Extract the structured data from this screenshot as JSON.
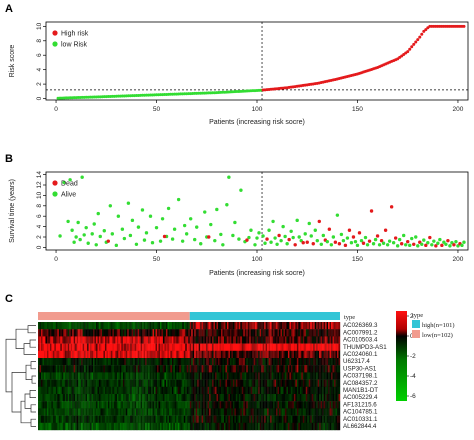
{
  "panels": {
    "a": "A",
    "b": "B",
    "c": "C"
  },
  "chart_data": [
    {
      "type": "scatter",
      "xlabel": "Patients (increasing risk socre)",
      "ylabel": "Risk score",
      "xlim": [
        -5,
        205
      ],
      "ylim": [
        -0.2,
        10.6
      ],
      "xticks": [
        0,
        50,
        100,
        150,
        200
      ],
      "yticks": [
        0,
        2,
        4,
        6,
        8,
        10
      ],
      "cutoff_index": 102,
      "cutoff_score": 1.2,
      "legend_position": "top-left",
      "series": [
        {
          "name": "High risk",
          "color": "#e41a1c",
          "index_range": [
            103,
            203
          ]
        },
        {
          "name": "low Risk",
          "color": "#33dd33",
          "index_range": [
            1,
            102
          ]
        }
      ],
      "curve_anchors": [
        [
          1,
          0.05
        ],
        [
          20,
          0.22
        ],
        [
          40,
          0.42
        ],
        [
          60,
          0.62
        ],
        [
          80,
          0.82
        ],
        [
          102,
          1.15
        ],
        [
          115,
          1.5
        ],
        [
          130,
          2.1
        ],
        [
          140,
          2.7
        ],
        [
          150,
          3.4
        ],
        [
          160,
          4.3
        ],
        [
          165,
          4.9
        ],
        [
          170,
          5.5
        ],
        [
          175,
          6.5
        ],
        [
          178,
          7.5
        ],
        [
          181,
          8.5
        ],
        [
          183,
          9.3
        ],
        [
          185,
          9.8
        ],
        [
          186,
          10.0
        ],
        [
          203,
          10.0
        ]
      ]
    },
    {
      "type": "scatter",
      "xlabel": "Patients (increasing risk socre)",
      "ylabel": "Survival time (years)",
      "xlim": [
        -5,
        205
      ],
      "ylim": [
        -0.5,
        14.5
      ],
      "xticks": [
        0,
        50,
        100,
        150,
        200
      ],
      "yticks": [
        0,
        2,
        4,
        6,
        8,
        10,
        12,
        14
      ],
      "cutoff_index": 102,
      "legend_position": "top-left",
      "series": [
        {
          "name": "Dead",
          "color": "#e41a1c"
        },
        {
          "name": "Alive",
          "color": "#33dd33"
        }
      ],
      "points": [
        [
          2,
          2.2,
          1
        ],
        [
          4,
          12.5,
          1
        ],
        [
          6,
          5.0,
          1
        ],
        [
          7,
          13.0,
          1
        ],
        [
          8,
          3.3,
          1
        ],
        [
          9,
          1.0,
          1
        ],
        [
          10,
          2.0,
          1
        ],
        [
          11,
          4.8,
          1
        ],
        [
          12,
          1.5,
          1
        ],
        [
          13,
          13.5,
          1
        ],
        [
          14,
          2.4,
          1
        ],
        [
          15,
          3.8,
          1
        ],
        [
          16,
          0.8,
          1
        ],
        [
          18,
          2.6,
          1
        ],
        [
          19,
          4.5,
          1
        ],
        [
          20,
          0.5,
          1
        ],
        [
          21,
          6.5,
          1
        ],
        [
          22,
          2.1,
          1
        ],
        [
          24,
          3.2,
          1
        ],
        [
          25,
          1.0,
          1
        ],
        [
          27,
          8.0,
          1
        ],
        [
          28,
          2.6,
          1
        ],
        [
          30,
          0.4,
          1
        ],
        [
          31,
          6.0,
          1
        ],
        [
          33,
          3.5,
          1
        ],
        [
          34,
          1.7,
          1
        ],
        [
          36,
          8.5,
          1
        ],
        [
          37,
          2.3,
          1
        ],
        [
          38,
          5.2,
          1
        ],
        [
          40,
          0.6,
          1
        ],
        [
          41,
          3.9,
          1
        ],
        [
          43,
          7.2,
          1
        ],
        [
          44,
          1.4,
          1
        ],
        [
          45,
          2.8,
          1
        ],
        [
          47,
          6.0,
          1
        ],
        [
          48,
          0.9,
          1
        ],
        [
          50,
          3.8,
          1
        ],
        [
          52,
          1.2,
          1
        ],
        [
          53,
          5.5,
          1
        ],
        [
          55,
          2.1,
          1
        ],
        [
          56,
          7.5,
          1
        ],
        [
          58,
          1.6,
          1
        ],
        [
          59,
          3.5,
          1
        ],
        [
          61,
          9.2,
          1
        ],
        [
          63,
          1.2,
          1
        ],
        [
          64,
          4.2,
          1
        ],
        [
          65,
          2.6,
          1
        ],
        [
          67,
          5.5,
          1
        ],
        [
          69,
          1.5,
          1
        ],
        [
          70,
          3.9,
          1
        ],
        [
          72,
          0.7,
          1
        ],
        [
          74,
          6.8,
          1
        ],
        [
          75,
          2.0,
          1
        ],
        [
          77,
          4.4,
          1
        ],
        [
          79,
          1.3,
          1
        ],
        [
          80,
          7.3,
          1
        ],
        [
          82,
          2.5,
          1
        ],
        [
          83,
          0.5,
          1
        ],
        [
          85,
          8.2,
          1
        ],
        [
          86,
          13.5,
          1
        ],
        [
          88,
          2.3,
          1
        ],
        [
          89,
          4.8,
          1
        ],
        [
          91,
          1.6,
          1
        ],
        [
          92,
          11.0,
          1
        ],
        [
          94,
          1.1,
          1
        ],
        [
          96,
          1.9,
          1
        ],
        [
          97,
          3.3,
          1
        ],
        [
          99,
          0.5,
          1
        ],
        [
          100,
          1.8,
          1
        ],
        [
          101,
          2.8,
          1
        ],
        [
          26,
          1.2,
          0
        ],
        [
          54,
          2.1,
          0
        ],
        [
          76,
          2.0,
          0
        ],
        [
          95,
          1.4,
          0
        ],
        [
          103,
          2.2,
          1
        ],
        [
          104,
          0.8,
          1
        ],
        [
          105,
          1.6,
          0
        ],
        [
          106,
          3.3,
          1
        ],
        [
          107,
          1.0,
          1
        ],
        [
          108,
          5.0,
          1
        ],
        [
          109,
          1.8,
          1
        ],
        [
          110,
          0.6,
          1
        ],
        [
          111,
          2.3,
          0
        ],
        [
          112,
          1.3,
          1
        ],
        [
          113,
          4.0,
          1
        ],
        [
          114,
          2.1,
          1
        ],
        [
          115,
          0.7,
          1
        ],
        [
          116,
          1.5,
          0
        ],
        [
          117,
          3.1,
          1
        ],
        [
          118,
          1.9,
          1
        ],
        [
          119,
          0.5,
          0
        ],
        [
          120,
          5.2,
          1
        ],
        [
          121,
          2.0,
          1
        ],
        [
          122,
          1.3,
          1
        ],
        [
          123,
          0.9,
          0
        ],
        [
          124,
          2.6,
          1
        ],
        [
          125,
          1.0,
          0
        ],
        [
          126,
          4.6,
          1
        ],
        [
          127,
          2.2,
          1
        ],
        [
          128,
          0.7,
          0
        ],
        [
          129,
          3.3,
          1
        ],
        [
          130,
          1.3,
          1
        ],
        [
          131,
          5.0,
          0
        ],
        [
          132,
          0.6,
          1
        ],
        [
          133,
          2.3,
          1
        ],
        [
          134,
          1.4,
          0
        ],
        [
          135,
          1.1,
          1
        ],
        [
          136,
          3.5,
          0
        ],
        [
          137,
          0.5,
          1
        ],
        [
          138,
          2.0,
          1
        ],
        [
          139,
          1.0,
          0
        ],
        [
          140,
          6.2,
          1
        ],
        [
          141,
          0.7,
          0
        ],
        [
          142,
          2.5,
          1
        ],
        [
          143,
          1.3,
          1
        ],
        [
          144,
          0.4,
          0
        ],
        [
          145,
          1.8,
          1
        ],
        [
          146,
          3.3,
          0
        ],
        [
          147,
          0.9,
          1
        ],
        [
          148,
          2.0,
          0
        ],
        [
          149,
          1.1,
          1
        ],
        [
          150,
          0.4,
          1
        ],
        [
          151,
          2.8,
          0
        ],
        [
          152,
          1.3,
          1
        ],
        [
          153,
          0.8,
          0
        ],
        [
          154,
          1.9,
          1
        ],
        [
          155,
          0.5,
          1
        ],
        [
          156,
          1.2,
          0
        ],
        [
          157,
          7.0,
          0
        ],
        [
          158,
          0.7,
          1
        ],
        [
          159,
          1.5,
          1
        ],
        [
          160,
          2.2,
          0
        ],
        [
          161,
          0.5,
          1
        ],
        [
          162,
          1.3,
          0
        ],
        [
          163,
          0.8,
          1
        ],
        [
          164,
          3.3,
          0
        ],
        [
          165,
          0.5,
          1
        ],
        [
          166,
          1.2,
          1
        ],
        [
          167,
          7.8,
          0
        ],
        [
          168,
          0.9,
          1
        ],
        [
          169,
          1.8,
          0
        ],
        [
          170,
          0.3,
          1
        ],
        [
          171,
          1.5,
          1
        ],
        [
          172,
          0.7,
          0
        ],
        [
          173,
          2.3,
          1
        ],
        [
          174,
          0.5,
          1
        ],
        [
          175,
          1.1,
          0
        ],
        [
          176,
          0.4,
          1
        ],
        [
          177,
          1.7,
          1
        ],
        [
          178,
          0.6,
          0
        ],
        [
          179,
          2.0,
          1
        ],
        [
          180,
          0.3,
          1
        ],
        [
          181,
          1.0,
          0
        ],
        [
          182,
          0.6,
          1
        ],
        [
          183,
          1.4,
          1
        ],
        [
          184,
          0.4,
          0
        ],
        [
          185,
          0.9,
          1
        ],
        [
          186,
          1.9,
          0
        ],
        [
          187,
          0.5,
          1
        ],
        [
          188,
          1.2,
          1
        ],
        [
          189,
          0.3,
          0
        ],
        [
          190,
          0.8,
          1
        ],
        [
          191,
          1.5,
          1
        ],
        [
          192,
          0.4,
          0
        ],
        [
          193,
          1.0,
          1
        ],
        [
          194,
          0.6,
          1
        ],
        [
          195,
          1.3,
          0
        ],
        [
          196,
          0.3,
          1
        ],
        [
          197,
          0.9,
          1
        ],
        [
          198,
          0.5,
          0
        ],
        [
          199,
          1.1,
          1
        ],
        [
          200,
          0.3,
          1
        ],
        [
          201,
          0.7,
          0
        ],
        [
          202,
          0.4,
          1
        ],
        [
          203,
          1.0,
          1
        ]
      ]
    },
    {
      "type": "heatmap",
      "rows": [
        "AC026369.3",
        "AC007991.2",
        "AC010503.4",
        "THUMPD3-AS1",
        "AC024060.1",
        "U62317.4",
        "USP30-AS1",
        "AC037198.1",
        "AC084357.2",
        "MAN1B1-DT",
        "AC005229.4",
        "AF131215.6",
        "AC104785.1",
        "AC010331.1",
        "AL662844.4"
      ],
      "columns_total": 203,
      "row_mean_high": [
        1.0,
        0.4,
        0.5,
        2.1,
        0.7,
        -0.2,
        0.0,
        -0.5,
        -0.3,
        -0.4,
        -0.5,
        -0.3,
        -0.6,
        -0.4,
        -0.7
      ],
      "row_mean_low": [
        -2.0,
        0.4,
        1.6,
        2.0,
        1.8,
        -0.8,
        -0.6,
        -1.5,
        -1.2,
        -1.3,
        -1.6,
        -1.6,
        -1.8,
        -1.4,
        -2.1
      ],
      "annotation": {
        "title": "type",
        "groups": [
          {
            "label": "high(n=101)",
            "count": 101,
            "color": "#33c5d6"
          },
          {
            "label": "low(n=102)",
            "count": 102,
            "color": "#f19b8e"
          }
        ]
      },
      "colorbar": {
        "ticks": [
          2,
          0,
          -2,
          -4,
          -6
        ],
        "range": [
          -6.5,
          2.5
        ],
        "colors": [
          "#ff1010",
          "#000000",
          "#00c800"
        ]
      }
    }
  ]
}
